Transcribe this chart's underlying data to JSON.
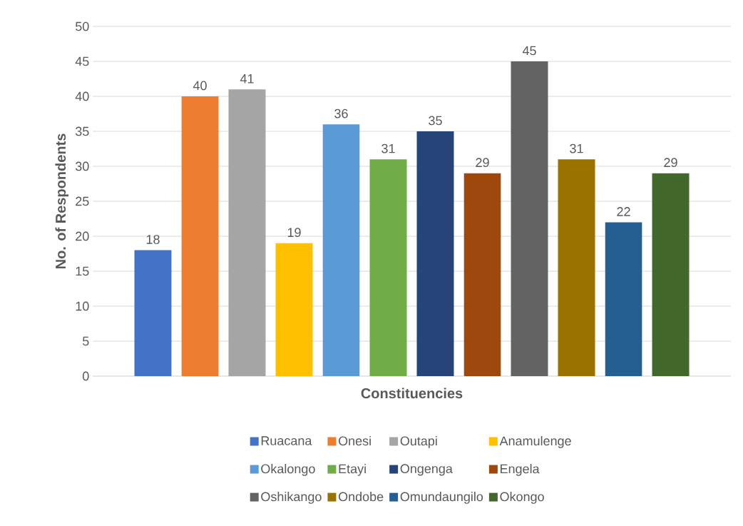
{
  "chart_data": {
    "type": "bar",
    "xlabel": "Constituencies",
    "ylabel": "No. of Respondents",
    "categories": [
      null
    ],
    "series": [
      {
        "name": "Ruacana",
        "color": "#4472c4",
        "values": [
          18
        ]
      },
      {
        "name": "Onesi",
        "color": "#ed7d31",
        "values": [
          40
        ]
      },
      {
        "name": "Outapi",
        "color": "#a5a5a5",
        "values": [
          41
        ]
      },
      {
        "name": "Anamulenge",
        "color": "#ffc000",
        "values": [
          19
        ]
      },
      {
        "name": "Okalongo",
        "color": "#5b9bd5",
        "values": [
          36
        ]
      },
      {
        "name": "Etayi",
        "color": "#70ad47",
        "values": [
          31
        ]
      },
      {
        "name": "Ongenga",
        "color": "#264478",
        "values": [
          35
        ]
      },
      {
        "name": "Engela",
        "color": "#9e480e",
        "values": [
          29
        ]
      },
      {
        "name": "Oshikango",
        "color": "#636363",
        "values": [
          45
        ]
      },
      {
        "name": "Ondobe",
        "color": "#997300",
        "values": [
          31
        ]
      },
      {
        "name": "Omundaungilo",
        "color": "#255e91",
        "values": [
          22
        ]
      },
      {
        "name": "Okongo",
        "color": "#43682b",
        "values": [
          29
        ]
      }
    ],
    "ylim": [
      0,
      50
    ],
    "yticks": [
      0,
      5,
      10,
      15,
      20,
      25,
      30,
      35,
      40,
      45,
      50
    ],
    "grid": "y",
    "legend": "bottom",
    "data_labels": true,
    "tick_labels": "y"
  }
}
